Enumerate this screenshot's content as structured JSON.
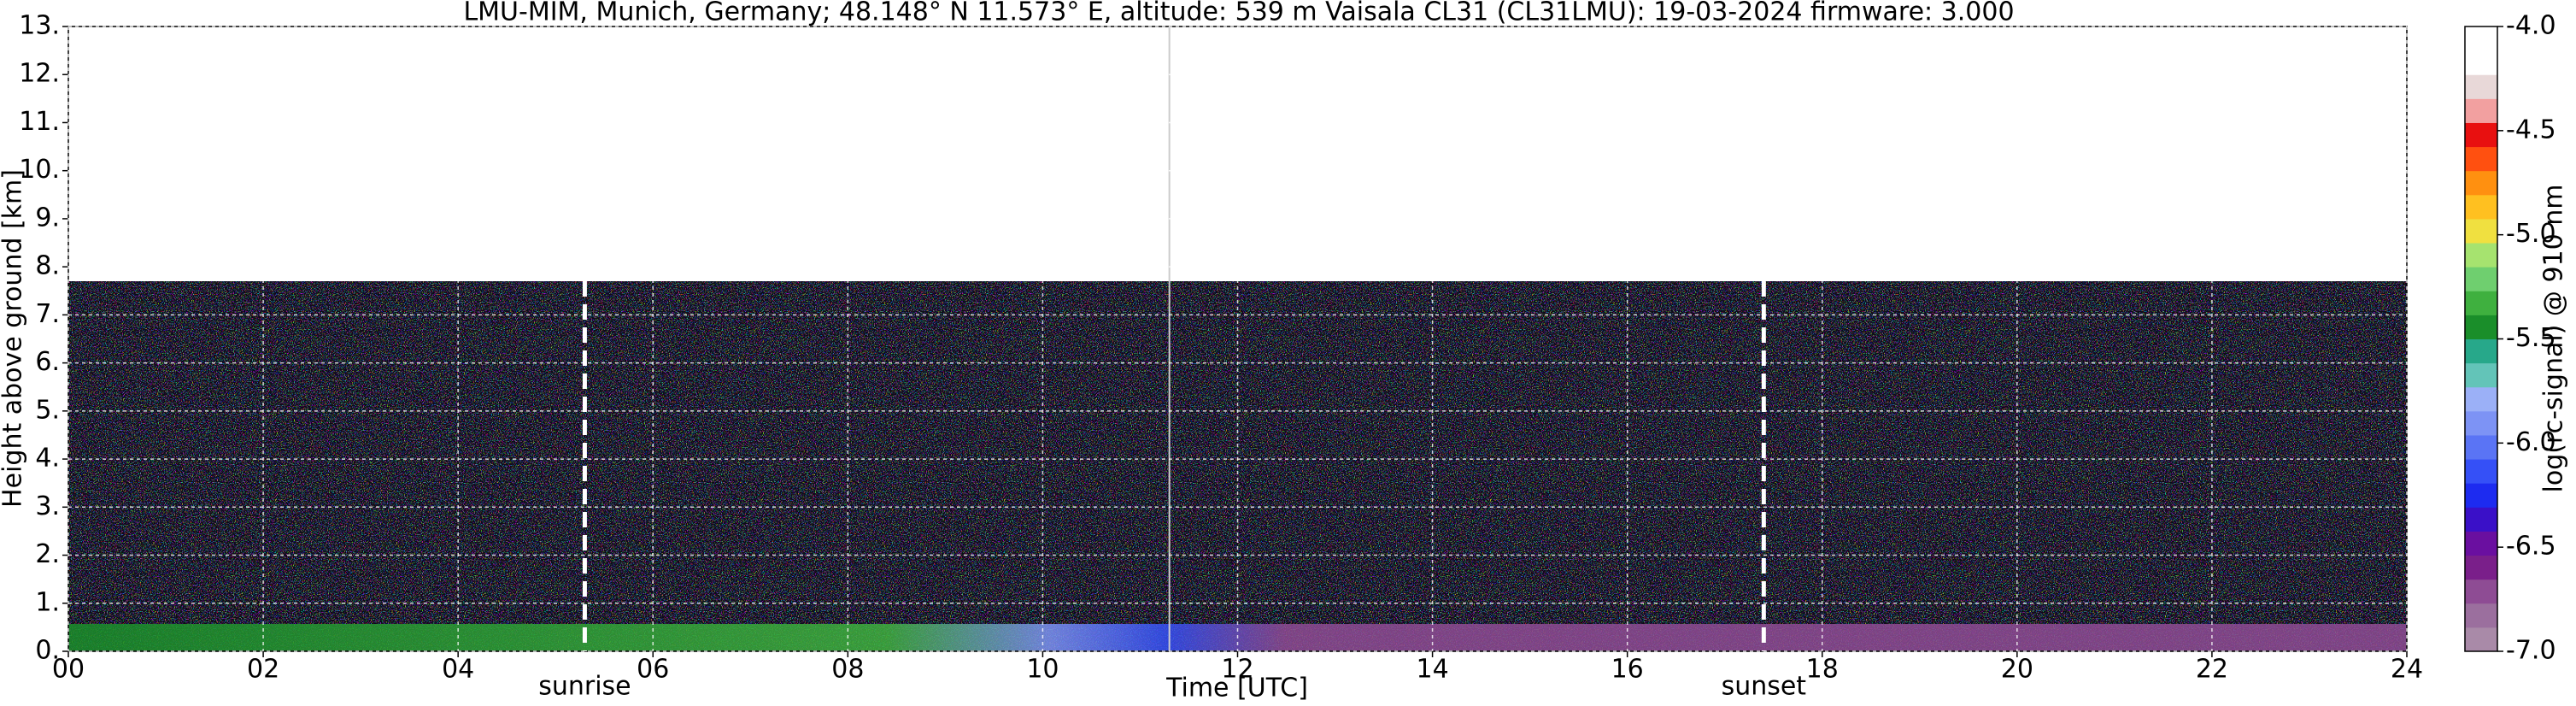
{
  "chart_data": {
    "type": "heatmap",
    "title": "LMU-MIM, Munich, Germany; 48.148° N 11.573° E, altitude: 539 m    Vaisala CL31 (CL31LMU): 19-03-2024    firmware: 3.000",
    "x_label": "Time [UTC]",
    "y_label": "Height above ground [km]",
    "xlim": [
      0,
      24
    ],
    "xticks": [
      {
        "value": 0,
        "label": "00"
      },
      {
        "value": 2,
        "label": "02"
      },
      {
        "value": 4,
        "label": "04"
      },
      {
        "value": 6,
        "label": "06"
      },
      {
        "value": 8,
        "label": "08"
      },
      {
        "value": 10,
        "label": "10"
      },
      {
        "value": 12,
        "label": "12"
      },
      {
        "value": 14,
        "label": "14"
      },
      {
        "value": 16,
        "label": "16"
      },
      {
        "value": 18,
        "label": "18"
      },
      {
        "value": 20,
        "label": "20"
      },
      {
        "value": 22,
        "label": "22"
      },
      {
        "value": 24,
        "label": "24"
      }
    ],
    "ylim": [
      0,
      13
    ],
    "yticks": [
      {
        "value": 0,
        "label": "0."
      },
      {
        "value": 1,
        "label": "1."
      },
      {
        "value": 2,
        "label": "2."
      },
      {
        "value": 3,
        "label": "3."
      },
      {
        "value": 4,
        "label": "4."
      },
      {
        "value": 5,
        "label": "5."
      },
      {
        "value": 6,
        "label": "6."
      },
      {
        "value": 7,
        "label": "7."
      },
      {
        "value": 8,
        "label": "8."
      },
      {
        "value": 9,
        "label": "9."
      },
      {
        "value": 10,
        "label": "10."
      },
      {
        "value": 11,
        "label": "11."
      },
      {
        "value": 12,
        "label": "12."
      },
      {
        "value": 13,
        "label": "13."
      }
    ],
    "grid": true,
    "annotations": [
      {
        "text": "sunrise",
        "x": 5.3
      },
      {
        "text": "sunset",
        "x": 17.4
      }
    ],
    "vlines": [
      11.3
    ],
    "colorbar": {
      "label": "log(rc-signal) @ 910 nm",
      "lim": [
        -7,
        -4
      ],
      "ticks": [
        {
          "value": -7,
          "label": "-7.0"
        },
        {
          "value": -6.5,
          "label": "-6.5"
        },
        {
          "value": -6,
          "label": "-6.0"
        },
        {
          "value": -5.5,
          "label": "-5.5"
        },
        {
          "value": -5,
          "label": "-5.0"
        },
        {
          "value": -4.5,
          "label": "-4.5"
        },
        {
          "value": -4,
          "label": "-4.0"
        }
      ],
      "colors": [
        "#a98aa8",
        "#9b6f9e",
        "#8e4c94",
        "#7a1f8a",
        "#6a0fa0",
        "#3a10c8",
        "#1d2bf0",
        "#3550f7",
        "#5a74f5",
        "#7d93f5",
        "#9bb0f7",
        "#63c4b8",
        "#27a88a",
        "#1a8e2a",
        "#3fb03f",
        "#6fcf6f",
        "#a6e36f",
        "#f0e040",
        "#ffc020",
        "#ff9010",
        "#ff5010",
        "#e81010",
        "#f2a0a0",
        "#e8d8d8",
        "#ffffff",
        "#ffffff"
      ]
    }
  }
}
